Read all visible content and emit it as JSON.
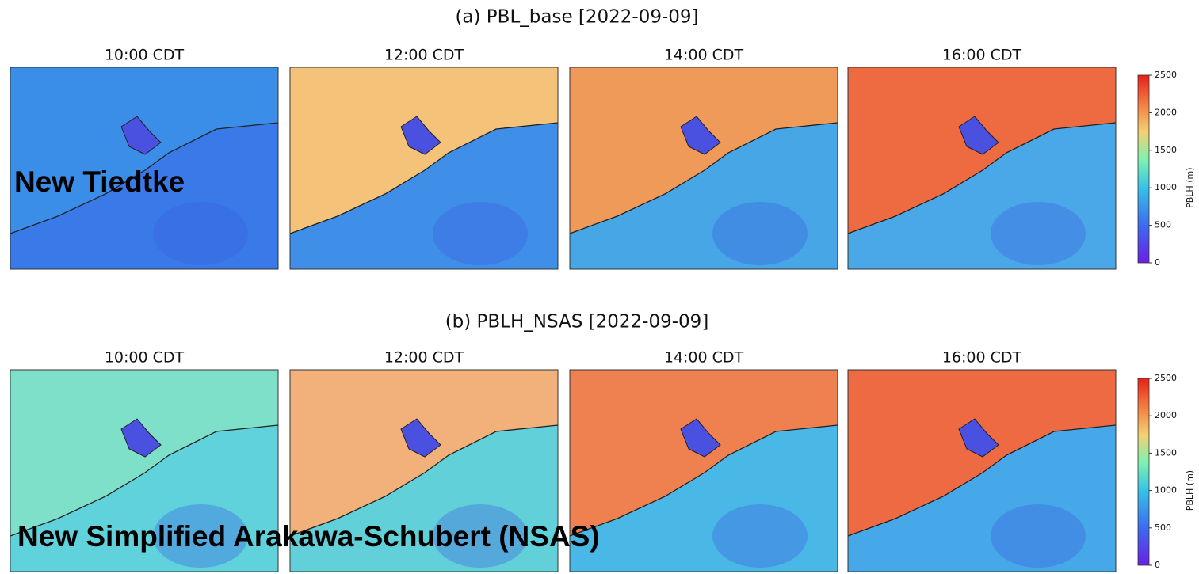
{
  "panels": [
    {
      "title": "(a) PBL_base [2022-09-09]",
      "overlay": "New Tiedtke",
      "maps": [
        "10:00 CDT",
        "12:00 CDT",
        "14:00 CDT",
        "16:00 CDT"
      ],
      "colorbar": {
        "label": "PBLH (m)",
        "lim": [
          0,
          2500
        ],
        "ticks": [
          0,
          500,
          1000,
          1500,
          2000,
          2500
        ]
      }
    },
    {
      "title": "(b) PBLH_NSAS [2022-09-09]",
      "overlay": "New Simplified Arakawa-Schubert (NSAS)",
      "maps": [
        "10:00 CDT",
        "12:00 CDT",
        "14:00 CDT",
        "16:00 CDT"
      ],
      "colorbar": {
        "label": "PBLH (m)",
        "lim": [
          0,
          2500
        ],
        "ticks": [
          0,
          500,
          1000,
          1500,
          2000,
          2500
        ]
      }
    }
  ]
}
